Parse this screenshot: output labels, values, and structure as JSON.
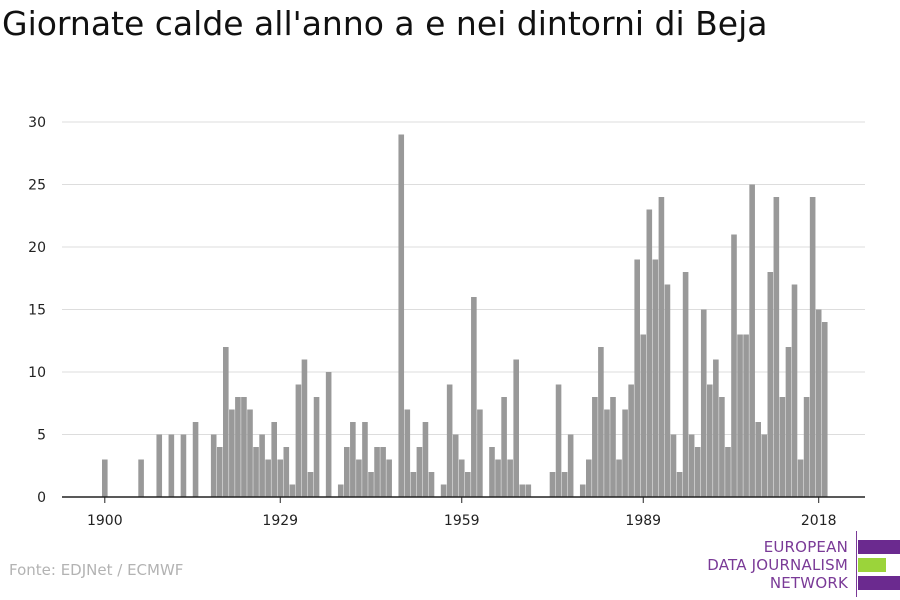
{
  "header": {
    "title": "Giornate calde all'anno a e nei dintorni di Beja"
  },
  "footer": {
    "source": "Fonte: EDJNet / ECMWF"
  },
  "logo": {
    "line1": "EUROPEAN",
    "line2": "DATA JOURNALISM",
    "line3": "NETWORK",
    "colors": {
      "text": "#7a3a97",
      "stripe_purple": "#6b2a8f",
      "stripe_green": "#9bd43a"
    }
  },
  "colors": {
    "bar": "#999999",
    "grid": "#dddddd",
    "axis": "#222222",
    "tick_text": "#222222"
  },
  "chart_data": {
    "type": "bar",
    "title": "Giornate calde all'anno a e nei dintorni di Beja",
    "xlabel": "",
    "ylabel": "",
    "ylim": [
      0,
      30
    ],
    "yticks": [
      0,
      5,
      10,
      15,
      20,
      25,
      30
    ],
    "xticks": [
      1900,
      1929,
      1959,
      1989,
      2018
    ],
    "grid": true,
    "x": [
      1900,
      1901,
      1902,
      1903,
      1904,
      1905,
      1906,
      1907,
      1908,
      1909,
      1910,
      1911,
      1912,
      1913,
      1914,
      1915,
      1916,
      1917,
      1918,
      1919,
      1920,
      1921,
      1922,
      1923,
      1924,
      1925,
      1926,
      1927,
      1928,
      1929,
      1930,
      1931,
      1932,
      1933,
      1934,
      1935,
      1936,
      1937,
      1938,
      1939,
      1940,
      1941,
      1942,
      1943,
      1944,
      1945,
      1946,
      1947,
      1948,
      1949,
      1950,
      1951,
      1952,
      1953,
      1954,
      1955,
      1956,
      1957,
      1958,
      1959,
      1960,
      1961,
      1962,
      1963,
      1964,
      1965,
      1966,
      1967,
      1968,
      1969,
      1970,
      1971,
      1972,
      1973,
      1974,
      1975,
      1976,
      1977,
      1978,
      1979,
      1980,
      1981,
      1982,
      1983,
      1984,
      1985,
      1986,
      1987,
      1988,
      1989,
      1990,
      1991,
      1992,
      1993,
      1994,
      1995,
      1996,
      1997,
      1998,
      1999,
      2000,
      2001,
      2002,
      2003,
      2004,
      2005,
      2006,
      2007,
      2008,
      2009,
      2010,
      2011,
      2012,
      2013,
      2014,
      2015,
      2016,
      2017,
      2018,
      2019,
      2020
    ],
    "values": [
      3,
      0,
      0,
      0,
      0,
      0,
      3,
      0,
      0,
      5,
      0,
      5,
      0,
      5,
      0,
      6,
      0,
      0,
      5,
      4,
      12,
      7,
      8,
      8,
      7,
      4,
      5,
      3,
      6,
      3,
      4,
      1,
      9,
      11,
      2,
      8,
      0,
      10,
      0,
      1,
      4,
      6,
      3,
      6,
      2,
      4,
      4,
      3,
      0,
      29,
      7,
      2,
      4,
      6,
      2,
      0,
      1,
      9,
      5,
      3,
      2,
      16,
      7,
      0,
      4,
      3,
      8,
      3,
      11,
      1,
      1,
      0,
      0,
      0,
      2,
      9,
      2,
      5,
      0,
      1,
      3,
      8,
      12,
      7,
      8,
      3,
      7,
      9,
      19,
      13,
      23,
      19,
      24,
      17,
      5,
      2,
      18,
      5,
      4,
      15,
      9,
      11,
      8,
      4,
      21,
      13,
      13,
      25,
      6,
      5,
      18,
      24,
      8,
      12,
      17,
      3,
      8,
      24,
      15,
      14,
      0
    ]
  }
}
